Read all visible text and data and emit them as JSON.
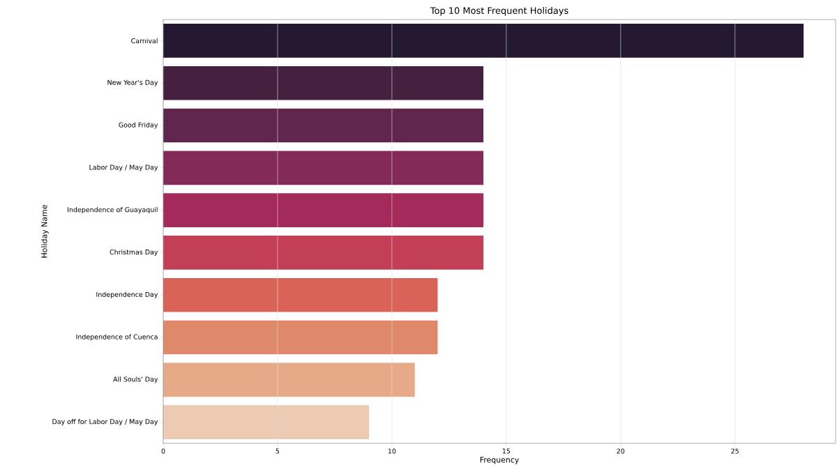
{
  "chart_data": {
    "type": "bar",
    "orientation": "horizontal",
    "title": "Top 10 Most Frequent Holidays",
    "xlabel": "Frequency",
    "ylabel": "Holiday Name",
    "categories": [
      "Carnival",
      "New Year's Day",
      "Good Friday",
      "Labor Day / May Day",
      "Independence of Guayaquil",
      "Christmas Day",
      "Independence Day",
      "Independence of Cuenca",
      "All Souls' Day",
      "Day off for Labor Day / May Day"
    ],
    "values": [
      28,
      14,
      14,
      14,
      14,
      14,
      12,
      12,
      11,
      9
    ],
    "colors": [
      "#241931",
      "#45213f",
      "#61264d",
      "#832a58",
      "#a32a5a",
      "#c33f55",
      "#d86356",
      "#e0896a",
      "#e7aa89",
      "#edcbb3"
    ],
    "xlim": [
      0,
      29.4
    ],
    "xticks": [
      0,
      5,
      10,
      15,
      20,
      25
    ],
    "grid": "x"
  }
}
